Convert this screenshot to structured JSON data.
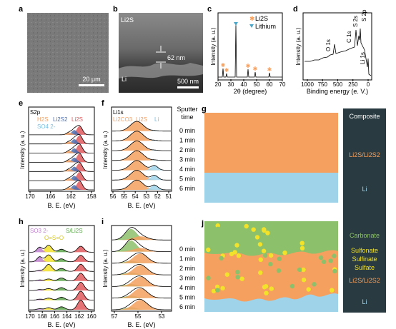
{
  "panels": {
    "a": {
      "letter": "a",
      "scale_bar": "20 μm"
    },
    "b": {
      "letter": "b",
      "label_top": "Li2S",
      "measure": "62 nm",
      "label_bottom": "Li",
      "scale_bar": "500 nm"
    },
    "c": {
      "letter": "c",
      "ylabel": "Intensity (a. u.)",
      "xlabel": "2θ (degree)",
      "legend_li2s": "Li2S",
      "legend_lithium": "Lithium",
      "xticks": [
        "20",
        "30",
        "40",
        "50",
        "60",
        "70"
      ]
    },
    "d": {
      "letter": "d",
      "ylabel": "Intensity (a. u.)",
      "xlabel": "Binding energy (e. V.)",
      "xticks": [
        "1000",
        "750",
        "500",
        "250",
        "0"
      ],
      "peaks": [
        "O 1s",
        "C 1s",
        "S 2s",
        "S 2p",
        "Li 1s"
      ]
    },
    "e": {
      "letter": "e",
      "orbital": "S2p",
      "species_line1": [
        "H2S",
        "Li2S2",
        "Li2S"
      ],
      "species_line2": "SO4 2-",
      "xticks": [
        "170",
        "166",
        "162",
        "158"
      ],
      "xlabel": "B. E. (eV)",
      "ylabel": "Intensity (a. u.)"
    },
    "f": {
      "letter": "f",
      "orbital": "Li1s",
      "species": [
        "Li2CO3",
        "Li2S",
        "Li"
      ],
      "xticks": [
        "56",
        "55",
        "54",
        "53",
        "52",
        "51"
      ],
      "xlabel": "B. E. (eV)",
      "ylabel": "Intensity (a. u.)"
    },
    "h": {
      "letter": "h",
      "species": [
        "SO3 2-",
        "S/Li2S",
        "O=S=O"
      ],
      "xticks": [
        "170",
        "168",
        "166",
        "164",
        "162",
        "160"
      ],
      "xlabel": "B. E. (eV)",
      "ylabel": "Intensity (a. u.)"
    },
    "i": {
      "letter": "i",
      "xticks": [
        "57",
        "55",
        "53"
      ],
      "xlabel": "B. E. (eV)",
      "ylabel": "Intensity (a. u.)"
    },
    "g": {
      "letter": "g",
      "title": "Composite",
      "layer1": "Li2S/Li2S2",
      "layer2": "Li"
    },
    "j": {
      "letter": "j",
      "layers": [
        "Carbonate",
        "Sulfonate",
        "Sulfinate",
        "Sulfate",
        "Li2S/Li2S2",
        "Li"
      ]
    }
  },
  "sputter": {
    "header_line1": "Sputter",
    "header_line2": "time",
    "times": [
      "0 min",
      "1 min",
      "2 min",
      "3 min",
      "4 min",
      "5 min",
      "6 min"
    ]
  },
  "colors": {
    "li2s": "#e05a5e",
    "lithium_marker": "#4aa6c9",
    "orange": "#f5a05f",
    "blue": "#9fd3ea",
    "green": "#8dc06b",
    "yellow": "#f2e22a",
    "dark_panel": "#293b41"
  },
  "chart_data": [
    {
      "type": "line",
      "panel": "c",
      "xlabel": "2θ (degree)",
      "ylabel": "Intensity (a. u.)",
      "xlim": [
        20,
        70
      ],
      "peaks": [
        {
          "x": 27,
          "label": "Li2S"
        },
        {
          "x": 31,
          "label": "Li2S"
        },
        {
          "x": 36,
          "label": "Lithium"
        },
        {
          "x": 44.8,
          "label": "Li2S"
        },
        {
          "x": 53,
          "label": "Li2S"
        },
        {
          "x": 64.5,
          "label": "Li2S"
        }
      ]
    },
    {
      "type": "line",
      "panel": "d",
      "xlabel": "Binding energy (e. V.)",
      "ylabel": "Intensity (a. u.)",
      "xlim": [
        1100,
        0
      ],
      "peaks": [
        {
          "x": 531,
          "label": "O 1s"
        },
        {
          "x": 285,
          "label": "C 1s"
        },
        {
          "x": 228,
          "label": "S 2s"
        },
        {
          "x": 163,
          "label": "S 2p"
        },
        {
          "x": 55,
          "label": "Li 1s"
        }
      ]
    }
  ]
}
